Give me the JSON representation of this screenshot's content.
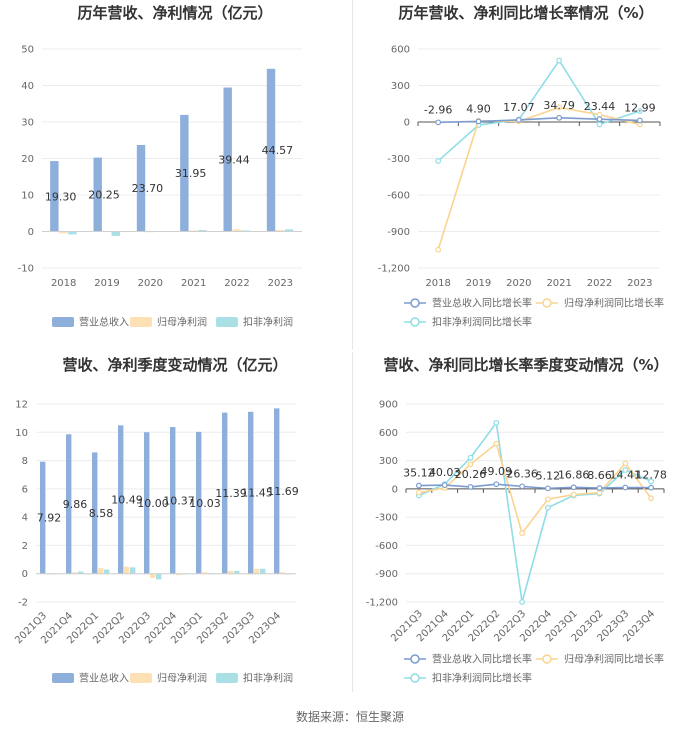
{
  "source": "数据来源：恒生聚源",
  "colors": {
    "revenue": "#8eaedb",
    "net_profit": "#fde1b4",
    "deducted_profit": "#a8e0e6",
    "line_revenue": "#7b9bd1",
    "line_net": "#fcd38e",
    "line_deducted": "#8fdde6"
  },
  "chart_data": [
    {
      "type": "bar",
      "title": "历年营收、净利情况（亿元）",
      "categories": [
        "2018",
        "2019",
        "2020",
        "2021",
        "2022",
        "2023"
      ],
      "ylim": [
        -10,
        50
      ],
      "yticks": [
        "-10",
        "0",
        "10",
        "20",
        "30",
        "40",
        "50"
      ],
      "series": [
        {
          "name": "营业总收入",
          "values": [
            19.3,
            20.25,
            23.7,
            31.95,
            39.44,
            44.57
          ],
          "labels": [
            "19.30",
            "20.25",
            "23.70",
            "31.95",
            "39.44",
            "44.57"
          ]
        },
        {
          "name": "归母净利润",
          "values": [
            -0.5,
            0.1,
            0.0,
            0.3,
            0.6,
            0.4
          ]
        },
        {
          "name": "扣非净利润",
          "values": [
            -0.8,
            -1.2,
            0.1,
            0.4,
            0.3,
            0.6
          ]
        }
      ],
      "legend": "bottom",
      "grid": true
    },
    {
      "type": "line",
      "title": "历年营收、净利同比增长率情况（%）",
      "categories": [
        "2018",
        "2019",
        "2020",
        "2021",
        "2022",
        "2023"
      ],
      "ylim": [
        -1200,
        600
      ],
      "yticks": [
        "-1,200",
        "-900",
        "-600",
        "-300",
        "0",
        "300",
        "600"
      ],
      "series": [
        {
          "name": "营业总收入同比增长率",
          "values": [
            -2.96,
            4.9,
            17.07,
            34.79,
            23.44,
            12.99
          ],
          "labels": [
            "-2.96",
            "4.90",
            "17.07",
            "34.79",
            "23.44",
            "12.99"
          ]
        },
        {
          "name": "归母净利润同比增长率",
          "values": [
            -1050,
            10,
            5,
            120,
            60,
            -20
          ]
        },
        {
          "name": "扣非净利润同比增长率",
          "values": [
            -320,
            -25,
            20,
            505,
            -20,
            90
          ]
        }
      ],
      "legend": "bottom",
      "grid": true
    },
    {
      "type": "bar",
      "title": "营收、净利季度变动情况（亿元）",
      "categories": [
        "2021Q3",
        "2021Q4",
        "2022Q1",
        "2022Q2",
        "2022Q3",
        "2022Q4",
        "2023Q1",
        "2023Q2",
        "2023Q3",
        "2023Q4"
      ],
      "ylim": [
        -2,
        12
      ],
      "yticks": [
        "-2",
        "0",
        "2",
        "4",
        "6",
        "8",
        "10",
        "12"
      ],
      "series": [
        {
          "name": "营业总收入",
          "values": [
            7.92,
            9.86,
            8.58,
            10.49,
            10.0,
            10.37,
            10.03,
            11.39,
            11.45,
            11.69
          ],
          "labels": [
            "7.92",
            "9.86",
            "8.58",
            "10.49",
            "10.00",
            "10.37",
            "10.03",
            "11.39",
            "11.45",
            "11.69"
          ]
        },
        {
          "name": "归母净利润",
          "values": [
            0.0,
            0.1,
            0.4,
            0.5,
            -0.3,
            -0.1,
            0.1,
            0.2,
            0.35,
            0.1
          ]
        },
        {
          "name": "扣非净利润",
          "values": [
            0.0,
            0.15,
            0.3,
            0.45,
            -0.4,
            0.0,
            0.05,
            0.2,
            0.35,
            0.0
          ]
        }
      ],
      "legend": "bottom",
      "grid": true
    },
    {
      "type": "line",
      "title": "营收、净利同比增长率季度变动情况（%）",
      "categories": [
        "2021Q3",
        "2021Q4",
        "2022Q1",
        "2022Q2",
        "2022Q3",
        "2022Q4",
        "2023Q1",
        "2023Q2",
        "2023Q3",
        "2023Q4"
      ],
      "ylim": [
        -1200,
        900
      ],
      "yticks": [
        "-1,200",
        "-900",
        "-600",
        "-300",
        "0",
        "300",
        "600",
        "900"
      ],
      "series": [
        {
          "name": "营业总收入同比增长率",
          "values": [
            35.12,
            40.03,
            20.26,
            49.09,
            26.36,
            5.12,
            16.86,
            8.66,
            14.41,
            12.78
          ],
          "labels": [
            "35.12",
            "40.03",
            "20.26",
            "49.09",
            "26.36",
            "5.12",
            "16.86",
            "8.66",
            "14.41",
            "12.78"
          ]
        },
        {
          "name": "归母净利润同比增长率",
          "values": [
            -40,
            10,
            260,
            480,
            -470,
            -110,
            -60,
            -40,
            270,
            -100
          ]
        },
        {
          "name": "扣非净利润同比增长率",
          "values": [
            -70,
            50,
            330,
            700,
            -1200,
            -200,
            -70,
            -50,
            200,
            80
          ]
        }
      ],
      "legend": "bottom",
      "grid": true
    }
  ]
}
